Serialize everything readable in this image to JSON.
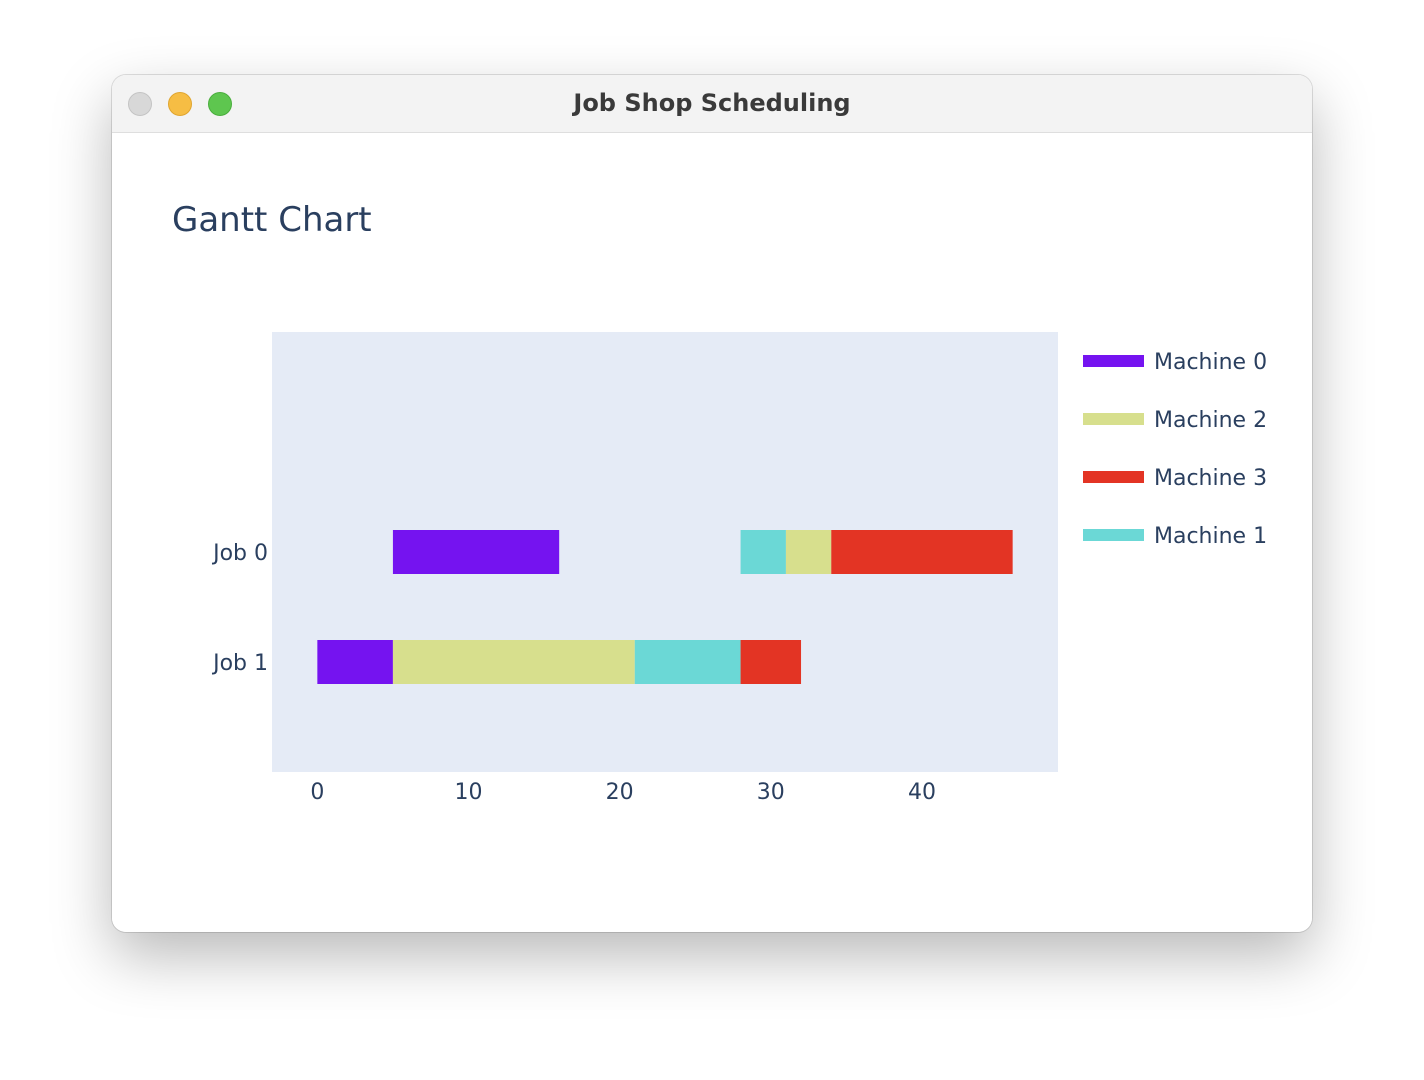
{
  "window": {
    "title": "Job Shop Scheduling"
  },
  "chart_data": {
    "type": "bar",
    "orientation": "horizontal",
    "title": "Gantt Chart",
    "xlabel": "",
    "ylabel": "",
    "xlim": [
      -3,
      49
    ],
    "x_ticks": [
      0,
      10,
      20,
      30,
      40
    ],
    "categories": [
      "Job 0",
      "Job 1"
    ],
    "legend": {
      "placement": "right",
      "entries": [
        {
          "name": "Machine 0",
          "color": "#7513f0"
        },
        {
          "name": "Machine 2",
          "color": "#d7df8d"
        },
        {
          "name": "Machine 3",
          "color": "#e33424"
        },
        {
          "name": "Machine 1",
          "color": "#6bd8d6"
        }
      ]
    },
    "tasks": [
      {
        "job": "Job 0",
        "machine": "Machine 0",
        "start": 5,
        "end": 16
      },
      {
        "job": "Job 0",
        "machine": "Machine 1",
        "start": 28,
        "end": 31
      },
      {
        "job": "Job 0",
        "machine": "Machine 2",
        "start": 31,
        "end": 34
      },
      {
        "job": "Job 0",
        "machine": "Machine 3",
        "start": 34,
        "end": 46
      },
      {
        "job": "Job 1",
        "machine": "Machine 0",
        "start": 0,
        "end": 5
      },
      {
        "job": "Job 1",
        "machine": "Machine 2",
        "start": 5,
        "end": 21
      },
      {
        "job": "Job 1",
        "machine": "Machine 1",
        "start": 21,
        "end": 28
      },
      {
        "job": "Job 1",
        "machine": "Machine 3",
        "start": 28,
        "end": 32
      }
    ],
    "grid": false,
    "plot_background": "#e5ebf6"
  }
}
